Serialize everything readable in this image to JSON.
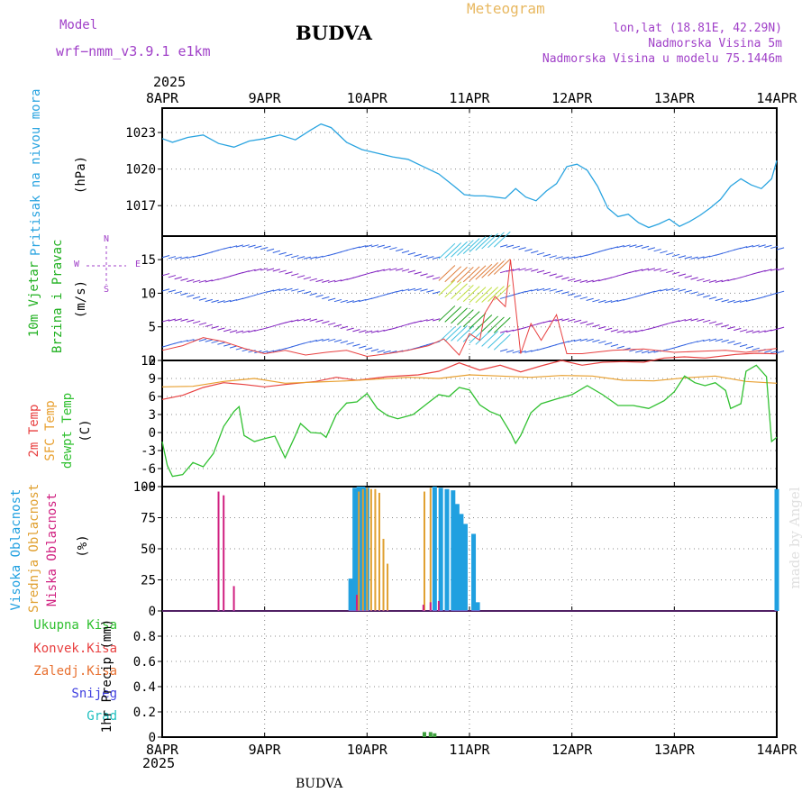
{
  "header": {
    "model_label": "Model",
    "model_name": "wrf−nmm_v3.9.1  e1km",
    "title": "BUDVA",
    "meteogram": "Meteogram",
    "coords": "lon,lat (18.81E, 42.29N)",
    "elevation": "Nadmorska Visina 5m",
    "model_elevation": "Nadmorska Visina u modelu 75.1446m",
    "year_top": "2025",
    "year_bottom": "2025",
    "footer_title": "BUDVA",
    "watermark": "made by Angel"
  },
  "colors": {
    "pressure": "#2aa4e0",
    "temp2m": "#e84040",
    "sfc_temp": "#e8a030",
    "dewpoint": "#30c030",
    "high_cloud": "#20a0e0",
    "mid_cloud": "#e0a030",
    "low_cloud": "#d02080",
    "precip": "#40a040",
    "wind_purple": "#8020c0"
  },
  "dates": [
    "8APR",
    "9APR",
    "10APR",
    "11APR",
    "12APR",
    "13APR",
    "14APR"
  ],
  "panels": {
    "pressure": {
      "label": "Pritisak na nivou mora",
      "unit": "(hPa)"
    },
    "wind": {
      "label1": "10m Vjetar",
      "label2": "Brzina i Pravac",
      "unit": "(m/s)",
      "compass": [
        "N",
        "E",
        "S",
        "W"
      ]
    },
    "temp": {
      "label1": "2m Temp",
      "label2": "SFC Temp",
      "label3": "dewpt Temp",
      "unit": "(C)"
    },
    "cloud": {
      "label1": "Visoka Oblacnost",
      "label2": "Srednja Oblacnost",
      "label3": "Niska Oblacnost",
      "unit": "(%)"
    },
    "precip": {
      "legend": [
        "Ukupna Kisa",
        "Konvek.Kisa",
        "Zaledj.Kisa",
        "Snijeg",
        "Grad"
      ],
      "unit": "1hr Precip (mm)"
    }
  },
  "chart_data": [
    {
      "type": "line",
      "name": "pressure",
      "x_range_days": [
        0,
        6
      ],
      "ylim": [
        1014.5,
        1025
      ],
      "yticks": [
        1017,
        1020,
        1023
      ],
      "series": [
        {
          "values": [
            [
              0,
              1022.5
            ],
            [
              0.1,
              1022.2
            ],
            [
              0.25,
              1022.6
            ],
            [
              0.4,
              1022.8
            ],
            [
              0.55,
              1022.1
            ],
            [
              0.7,
              1021.8
            ],
            [
              0.85,
              1022.3
            ],
            [
              1.0,
              1022.5
            ],
            [
              1.15,
              1022.8
            ],
            [
              1.3,
              1022.4
            ],
            [
              1.45,
              1023.2
            ],
            [
              1.55,
              1023.7
            ],
            [
              1.65,
              1023.4
            ],
            [
              1.8,
              1022.2
            ],
            [
              1.95,
              1021.6
            ],
            [
              2.1,
              1021.3
            ],
            [
              2.25,
              1021.0
            ],
            [
              2.4,
              1020.8
            ],
            [
              2.55,
              1020.2
            ],
            [
              2.7,
              1019.6
            ],
            [
              2.85,
              1018.6
            ],
            [
              2.95,
              1017.9
            ],
            [
              3.05,
              1017.8
            ],
            [
              3.15,
              1017.8
            ],
            [
              3.25,
              1017.7
            ],
            [
              3.35,
              1017.6
            ],
            [
              3.45,
              1018.4
            ],
            [
              3.55,
              1017.7
            ],
            [
              3.65,
              1017.4
            ],
            [
              3.75,
              1018.2
            ],
            [
              3.85,
              1018.8
            ],
            [
              3.95,
              1020.2
            ],
            [
              4.05,
              1020.4
            ],
            [
              4.15,
              1019.9
            ],
            [
              4.25,
              1018.6
            ],
            [
              4.35,
              1016.8
            ],
            [
              4.45,
              1016.1
            ],
            [
              4.55,
              1016.3
            ],
            [
              4.65,
              1015.6
            ],
            [
              4.75,
              1015.2
            ],
            [
              4.85,
              1015.5
            ],
            [
              4.95,
              1015.9
            ],
            [
              5.05,
              1015.3
            ],
            [
              5.15,
              1015.7
            ],
            [
              5.25,
              1016.2
            ],
            [
              5.35,
              1016.8
            ],
            [
              5.45,
              1017.5
            ],
            [
              5.55,
              1018.6
            ],
            [
              5.65,
              1019.2
            ],
            [
              5.75,
              1018.7
            ],
            [
              5.85,
              1018.4
            ],
            [
              5.95,
              1019.2
            ],
            [
              6.0,
              1020.7
            ]
          ]
        }
      ]
    },
    {
      "type": "line",
      "name": "wind_speed",
      "x_range_days": [
        0,
        6
      ],
      "ylim": [
        0,
        18.5
      ],
      "yticks": [
        0,
        5,
        10,
        15
      ],
      "series": [
        {
          "values": [
            [
              0,
              1.5
            ],
            [
              0.2,
              2.2
            ],
            [
              0.4,
              3.4
            ],
            [
              0.6,
              2.8
            ],
            [
              0.8,
              1.8
            ],
            [
              1.0,
              1.0
            ],
            [
              1.2,
              1.5
            ],
            [
              1.4,
              0.8
            ],
            [
              1.6,
              1.2
            ],
            [
              1.8,
              1.5
            ],
            [
              2.0,
              0.6
            ],
            [
              2.2,
              1.0
            ],
            [
              2.4,
              1.5
            ],
            [
              2.6,
              2.2
            ],
            [
              2.75,
              3.2
            ],
            [
              2.9,
              0.8
            ],
            [
              3.0,
              4.0
            ],
            [
              3.1,
              3.0
            ],
            [
              3.15,
              7.0
            ],
            [
              3.25,
              9.5
            ],
            [
              3.35,
              8.0
            ],
            [
              3.4,
              15.0
            ],
            [
              3.5,
              1.0
            ],
            [
              3.6,
              5.5
            ],
            [
              3.7,
              3.0
            ],
            [
              3.85,
              6.8
            ],
            [
              3.95,
              1.0
            ],
            [
              4.1,
              1.0
            ],
            [
              4.4,
              1.5
            ],
            [
              4.7,
              1.7
            ],
            [
              5.0,
              1.2
            ],
            [
              5.3,
              1.4
            ],
            [
              5.5,
              1.5
            ],
            [
              5.7,
              1.2
            ],
            [
              6.0,
              1.8
            ]
          ]
        }
      ]
    },
    {
      "type": "line",
      "name": "temperature",
      "x_range_days": [
        0,
        6
      ],
      "ylim": [
        -9,
        12
      ],
      "yticks": [
        -9,
        -6,
        -3,
        0,
        3,
        6,
        9,
        12
      ],
      "series": [
        {
          "values": [
            [
              0,
              5.5
            ],
            [
              0.2,
              6.2
            ],
            [
              0.4,
              7.5
            ],
            [
              0.6,
              8.3
            ],
            [
              0.8,
              8.0
            ],
            [
              1.0,
              7.6
            ],
            [
              1.2,
              8.0
            ],
            [
              1.5,
              8.5
            ],
            [
              1.7,
              9.2
            ],
            [
              1.9,
              8.7
            ],
            [
              2.2,
              9.3
            ],
            [
              2.5,
              9.6
            ],
            [
              2.7,
              10.2
            ],
            [
              2.9,
              11.6
            ],
            [
              3.1,
              10.4
            ],
            [
              3.3,
              11.2
            ],
            [
              3.5,
              10.1
            ],
            [
              3.7,
              11.1
            ],
            [
              3.9,
              12.0
            ],
            [
              4.1,
              11.2
            ],
            [
              4.3,
              11.7
            ],
            [
              4.5,
              11.8
            ],
            [
              4.7,
              11.7
            ],
            [
              4.9,
              12.4
            ],
            [
              5.1,
              12.6
            ],
            [
              5.3,
              12.4
            ],
            [
              5.6,
              13.0
            ],
            [
              5.8,
              13.2
            ],
            [
              6.0,
              13.1
            ]
          ]
        },
        {
          "values": [
            [
              0,
              7.6
            ],
            [
              0.3,
              7.7
            ],
            [
              0.6,
              8.5
            ],
            [
              0.9,
              9.0
            ],
            [
              1.2,
              8.2
            ],
            [
              1.5,
              8.4
            ],
            [
              1.8,
              8.6
            ],
            [
              2.1,
              8.9
            ],
            [
              2.4,
              9.2
            ],
            [
              2.7,
              9.0
            ],
            [
              3.0,
              9.6
            ],
            [
              3.3,
              9.4
            ],
            [
              3.6,
              9.2
            ],
            [
              3.9,
              9.5
            ],
            [
              4.2,
              9.4
            ],
            [
              4.5,
              8.7
            ],
            [
              4.8,
              8.6
            ],
            [
              5.1,
              9.1
            ],
            [
              5.4,
              9.4
            ],
            [
              5.7,
              8.5
            ],
            [
              6.0,
              8.2
            ]
          ]
        },
        {
          "values": [
            [
              0,
              -1.5
            ],
            [
              0.05,
              -5.5
            ],
            [
              0.1,
              -7.3
            ],
            [
              0.2,
              -7.0
            ],
            [
              0.3,
              -5.0
            ],
            [
              0.4,
              -5.7
            ],
            [
              0.5,
              -3.5
            ],
            [
              0.6,
              1.0
            ],
            [
              0.7,
              3.5
            ],
            [
              0.75,
              4.3
            ],
            [
              0.8,
              -0.5
            ],
            [
              0.9,
              -1.5
            ],
            [
              1.0,
              -1.0
            ],
            [
              1.1,
              -0.6
            ],
            [
              1.2,
              -4.2
            ],
            [
              1.3,
              -0.5
            ],
            [
              1.35,
              1.5
            ],
            [
              1.45,
              0.0
            ],
            [
              1.55,
              -0.1
            ],
            [
              1.6,
              -0.8
            ],
            [
              1.7,
              3.0
            ],
            [
              1.8,
              4.9
            ],
            [
              1.9,
              5.1
            ],
            [
              2.0,
              6.5
            ],
            [
              2.1,
              4.0
            ],
            [
              2.2,
              2.8
            ],
            [
              2.3,
              2.3
            ],
            [
              2.45,
              3.0
            ],
            [
              2.6,
              5.0
            ],
            [
              2.7,
              6.3
            ],
            [
              2.8,
              6.0
            ],
            [
              2.9,
              7.5
            ],
            [
              3.0,
              7.1
            ],
            [
              3.1,
              4.6
            ],
            [
              3.2,
              3.5
            ],
            [
              3.3,
              2.8
            ],
            [
              3.4,
              0.0
            ],
            [
              3.45,
              -1.8
            ],
            [
              3.5,
              -0.5
            ],
            [
              3.6,
              3.3
            ],
            [
              3.7,
              4.8
            ],
            [
              3.85,
              5.6
            ],
            [
              4.0,
              6.3
            ],
            [
              4.15,
              7.8
            ],
            [
              4.3,
              6.3
            ],
            [
              4.45,
              4.5
            ],
            [
              4.6,
              4.5
            ],
            [
              4.75,
              4.0
            ],
            [
              4.9,
              5.3
            ],
            [
              5.0,
              6.8
            ],
            [
              5.1,
              9.4
            ],
            [
              5.2,
              8.3
            ],
            [
              5.3,
              7.8
            ],
            [
              5.4,
              8.3
            ],
            [
              5.5,
              7.0
            ],
            [
              5.55,
              4.0
            ],
            [
              5.65,
              4.8
            ],
            [
              5.7,
              10.2
            ],
            [
              5.8,
              11.2
            ],
            [
              5.9,
              9.3
            ],
            [
              5.95,
              -1.5
            ],
            [
              6.0,
              -0.8
            ]
          ]
        }
      ]
    },
    {
      "type": "bar",
      "name": "cloud_cover",
      "x_range_days": [
        0,
        6
      ],
      "ylim": [
        0,
        100
      ],
      "yticks": [
        0,
        25,
        50,
        75,
        100
      ],
      "series": [
        {
          "values": [
            [
              1.84,
              26
            ],
            [
              1.88,
              99
            ],
            [
              1.92,
              100
            ],
            [
              1.96,
              100
            ],
            [
              2.0,
              99
            ],
            [
              2.66,
              100
            ],
            [
              2.72,
              99
            ],
            [
              2.78,
              98
            ],
            [
              2.84,
              97
            ],
            [
              2.88,
              86
            ],
            [
              2.92,
              78
            ],
            [
              2.96,
              70
            ],
            [
              3.04,
              62
            ],
            [
              3.08,
              7
            ],
            [
              6.0,
              98
            ]
          ]
        },
        {
          "values": [
            [
              1.92,
              96
            ],
            [
              1.96,
              98
            ],
            [
              2.0,
              99
            ],
            [
              2.04,
              98
            ],
            [
              2.08,
              98
            ],
            [
              2.12,
              95
            ],
            [
              2.16,
              58
            ],
            [
              2.2,
              38
            ],
            [
              2.56,
              96
            ],
            [
              2.62,
              99
            ]
          ]
        },
        {
          "values": [
            [
              0.55,
              96
            ],
            [
              0.6,
              93
            ],
            [
              0.7,
              20
            ],
            [
              1.9,
              13
            ],
            [
              2.55,
              5
            ],
            [
              2.62,
              7
            ],
            [
              2.7,
              8
            ]
          ]
        }
      ]
    },
    {
      "type": "bar",
      "name": "precipitation",
      "x_range_days": [
        0,
        6
      ],
      "ylim": [
        0,
        1.0
      ],
      "yticks": [
        0,
        0.2,
        0.4,
        0.6,
        0.8
      ],
      "series": [
        {
          "values": [
            [
              2.56,
              0.04
            ],
            [
              2.62,
              0.04
            ],
            [
              2.66,
              0.03
            ]
          ]
        }
      ]
    }
  ]
}
